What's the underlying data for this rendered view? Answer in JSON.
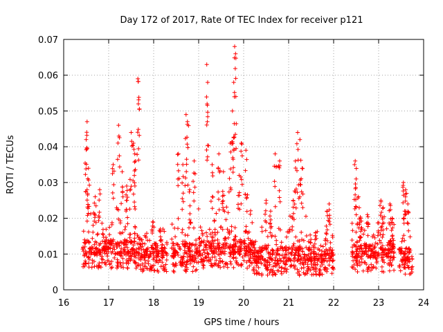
{
  "chart_data": {
    "type": "scatter",
    "title": "Day 172 of 2017, Rate Of TEC Index for receiver p121",
    "xlabel": "GPS time / hours",
    "ylabel": "ROTI / TECUs",
    "xlim": [
      16,
      24
    ],
    "ylim": [
      0,
      0.07
    ],
    "xticks": [
      "16",
      "17",
      "18",
      "19",
      "20",
      "21",
      "22",
      "23",
      "24"
    ],
    "yticks": [
      "0",
      "0.01",
      "0.02",
      "0.03",
      "0.04",
      "0.05",
      "0.06",
      "0.07"
    ],
    "grid": true,
    "marker": "+",
    "color": "#ff0000",
    "clusters": [
      {
        "x_range": [
          16.42,
          16.95
        ],
        "base": 0.01,
        "spread": 0.009,
        "highs": [
          [
            16.52,
            0.047
          ],
          [
            16.5,
            0.042
          ],
          [
            16.55,
            0.034
          ],
          [
            16.52,
            0.028
          ],
          [
            16.7,
            0.026
          ],
          [
            16.8,
            0.028
          ]
        ]
      },
      {
        "x_range": [
          16.95,
          17.7
        ],
        "base": 0.01,
        "spread": 0.01,
        "highs": [
          [
            17.22,
            0.046
          ],
          [
            17.5,
            0.044
          ],
          [
            17.55,
            0.041
          ],
          [
            17.58,
            0.038
          ],
          [
            17.65,
            0.059
          ],
          [
            17.66,
            0.052
          ],
          [
            17.1,
            0.035
          ],
          [
            17.3,
            0.033
          ],
          [
            17.4,
            0.029
          ]
        ]
      },
      {
        "x_range": [
          17.7,
          18.3
        ],
        "base": 0.009,
        "spread": 0.006,
        "highs": [
          [
            17.98,
            0.019
          ],
          [
            18.15,
            0.017
          ]
        ]
      },
      {
        "x_range": [
          18.4,
          19.0
        ],
        "base": 0.009,
        "spread": 0.009,
        "highs": [
          [
            18.55,
            0.038
          ],
          [
            18.65,
            0.035
          ],
          [
            18.72,
            0.049
          ],
          [
            18.75,
            0.047
          ],
          [
            18.8,
            0.028
          ],
          [
            18.9,
            0.036
          ]
        ]
      },
      {
        "x_range": [
          19.0,
          19.6
        ],
        "base": 0.01,
        "spread": 0.01,
        "highs": [
          [
            19.18,
            0.063
          ],
          [
            19.2,
            0.058
          ],
          [
            19.3,
            0.035
          ],
          [
            19.45,
            0.038
          ],
          [
            19.55,
            0.033
          ]
        ]
      },
      {
        "x_range": [
          19.6,
          20.2
        ],
        "base": 0.01,
        "spread": 0.011,
        "highs": [
          [
            19.8,
            0.068
          ],
          [
            19.82,
            0.066
          ],
          [
            19.78,
            0.058
          ],
          [
            19.75,
            0.05
          ],
          [
            19.7,
            0.041
          ],
          [
            19.95,
            0.041
          ],
          [
            20.05,
            0.039
          ],
          [
            19.9,
            0.032
          ]
        ]
      },
      {
        "x_range": [
          20.2,
          20.9
        ],
        "base": 0.008,
        "spread": 0.008,
        "highs": [
          [
            20.7,
            0.038
          ],
          [
            20.8,
            0.036
          ],
          [
            20.5,
            0.025
          ],
          [
            20.6,
            0.022
          ]
        ]
      },
      {
        "x_range": [
          20.9,
          21.45
        ],
        "base": 0.008,
        "spread": 0.009,
        "highs": [
          [
            21.2,
            0.044
          ],
          [
            21.25,
            0.042
          ],
          [
            21.15,
            0.036
          ],
          [
            21.3,
            0.034
          ],
          [
            21.1,
            0.025
          ]
        ]
      },
      {
        "x_range": [
          21.45,
          22.0
        ],
        "base": 0.008,
        "spread": 0.006,
        "highs": [
          [
            21.9,
            0.024
          ],
          [
            21.85,
            0.022
          ],
          [
            21.6,
            0.016
          ]
        ]
      },
      {
        "x_range": [
          22.4,
          22.9
        ],
        "base": 0.009,
        "spread": 0.008,
        "highs": [
          [
            22.48,
            0.036
          ],
          [
            22.5,
            0.031
          ],
          [
            22.55,
            0.026
          ],
          [
            22.6,
            0.02
          ],
          [
            22.75,
            0.021
          ]
        ]
      },
      {
        "x_range": [
          22.9,
          23.35
        ],
        "base": 0.009,
        "spread": 0.007,
        "highs": [
          [
            23.05,
            0.025
          ],
          [
            23.1,
            0.023
          ],
          [
            23.25,
            0.024
          ],
          [
            23.3,
            0.02
          ]
        ]
      },
      {
        "x_range": [
          23.45,
          23.75
        ],
        "base": 0.008,
        "spread": 0.006,
        "highs": [
          [
            23.55,
            0.03
          ],
          [
            23.6,
            0.028
          ],
          [
            23.58,
            0.022
          ],
          [
            23.65,
            0.024
          ]
        ]
      }
    ]
  }
}
